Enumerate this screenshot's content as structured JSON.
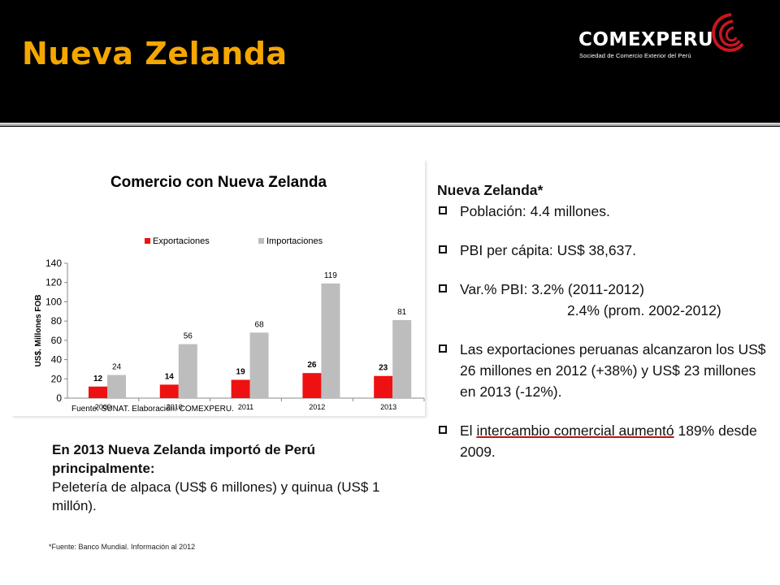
{
  "header": {
    "title": "Nueva Zelanda",
    "logo": {
      "name": "COMEXPERU",
      "subtitle": "Sociedad de Comercio Exterior del Perú"
    }
  },
  "colors": {
    "title": "#f5a700",
    "exports": "#ee1111",
    "imports": "#bdbdbd",
    "logo_red": "#c9161f"
  },
  "chart_data": {
    "type": "bar",
    "title": "Comercio con Nueva Zelanda",
    "categories": [
      "2009",
      "2010",
      "2011",
      "2012",
      "2013"
    ],
    "series": [
      {
        "name": "Exportaciones",
        "color": "#ee1111",
        "values": [
          12,
          14,
          19,
          26,
          23
        ]
      },
      {
        "name": "Importaciones",
        "color": "#bdbdbd",
        "values": [
          24,
          56,
          68,
          119,
          81
        ]
      }
    ],
    "ylabel": "US$. Millones FOB",
    "xlabel": "",
    "ylim": [
      0,
      140
    ],
    "yticks": [
      0,
      20,
      40,
      60,
      80,
      100,
      120,
      140
    ],
    "grid": false,
    "legend": "top",
    "source": "Fuente: SUNAT. Elaboración: COMEXPERU."
  },
  "summary": {
    "line1": "En 2013 Nueva Zelanda importó de Perú principalmente:",
    "line2": "Peletería de alpaca (US$ 6 millones) y quinua (US$ 1 millón)."
  },
  "footnote": "*Fuente: Banco Mundial. Información al 2012",
  "facts": {
    "title": "Nueva Zelanda*",
    "poblacion": "Población: 4.4 millones.",
    "pbi": "PBI per cápita: US$ 38,637.",
    "var1": "Var.% PBI: 3.2% (2011-2012)",
    "var2": "2.4% (prom. 2002-2012)",
    "exports": "Las exportaciones peruanas alcanzaron los US$ 26 millones en 2012 (+38%) y US$ 23 millones en 2013 (-12%).",
    "trade_pre": "El ",
    "trade_hl": "intercambio comercial aumentó",
    "trade_post": " 189% desde 2009."
  }
}
